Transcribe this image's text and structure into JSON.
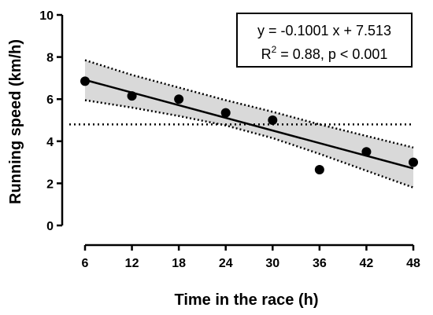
{
  "chart_data": {
    "type": "scatter",
    "xlabel": "Time in the race (h)",
    "ylabel": "Running speed (km/h)",
    "x_ticks": [
      6,
      12,
      18,
      24,
      30,
      36,
      42,
      48
    ],
    "y_ticks": [
      0,
      2,
      4,
      6,
      8,
      10
    ],
    "xlim": [
      6,
      48
    ],
    "ylim": [
      0,
      10
    ],
    "grid": false,
    "points": [
      {
        "x": 6,
        "y": 6.85
      },
      {
        "x": 12,
        "y": 6.15
      },
      {
        "x": 18,
        "y": 6.0
      },
      {
        "x": 24,
        "y": 5.35
      },
      {
        "x": 30,
        "y": 5.0
      },
      {
        "x": 36,
        "y": 2.65
      },
      {
        "x": 42,
        "y": 3.5
      },
      {
        "x": 48,
        "y": 3.0
      }
    ],
    "regression": {
      "slope": -0.1001,
      "intercept": 7.513
    },
    "confidence_band": {
      "x": [
        6,
        12,
        18,
        24,
        30,
        36,
        42,
        48
      ],
      "upper": [
        7.85,
        7.15,
        6.55,
        5.95,
        5.4,
        4.8,
        4.25,
        3.7
      ],
      "lower": [
        5.95,
        5.6,
        5.2,
        4.75,
        4.15,
        3.4,
        2.6,
        1.8
      ]
    },
    "reference_line_y": 4.8,
    "annotation": {
      "equation": "y = -0.1001 x + 7.513",
      "r_symbol": "R",
      "r_exponent": "2",
      "stats": " = 0.88, p < 0.001",
      "placement": "top-right"
    },
    "colors": {
      "points": "#000000",
      "fit_line": "#000000",
      "band_fill": "#d9d9d9",
      "band_edge": "#000000",
      "axes": "#000000"
    }
  }
}
